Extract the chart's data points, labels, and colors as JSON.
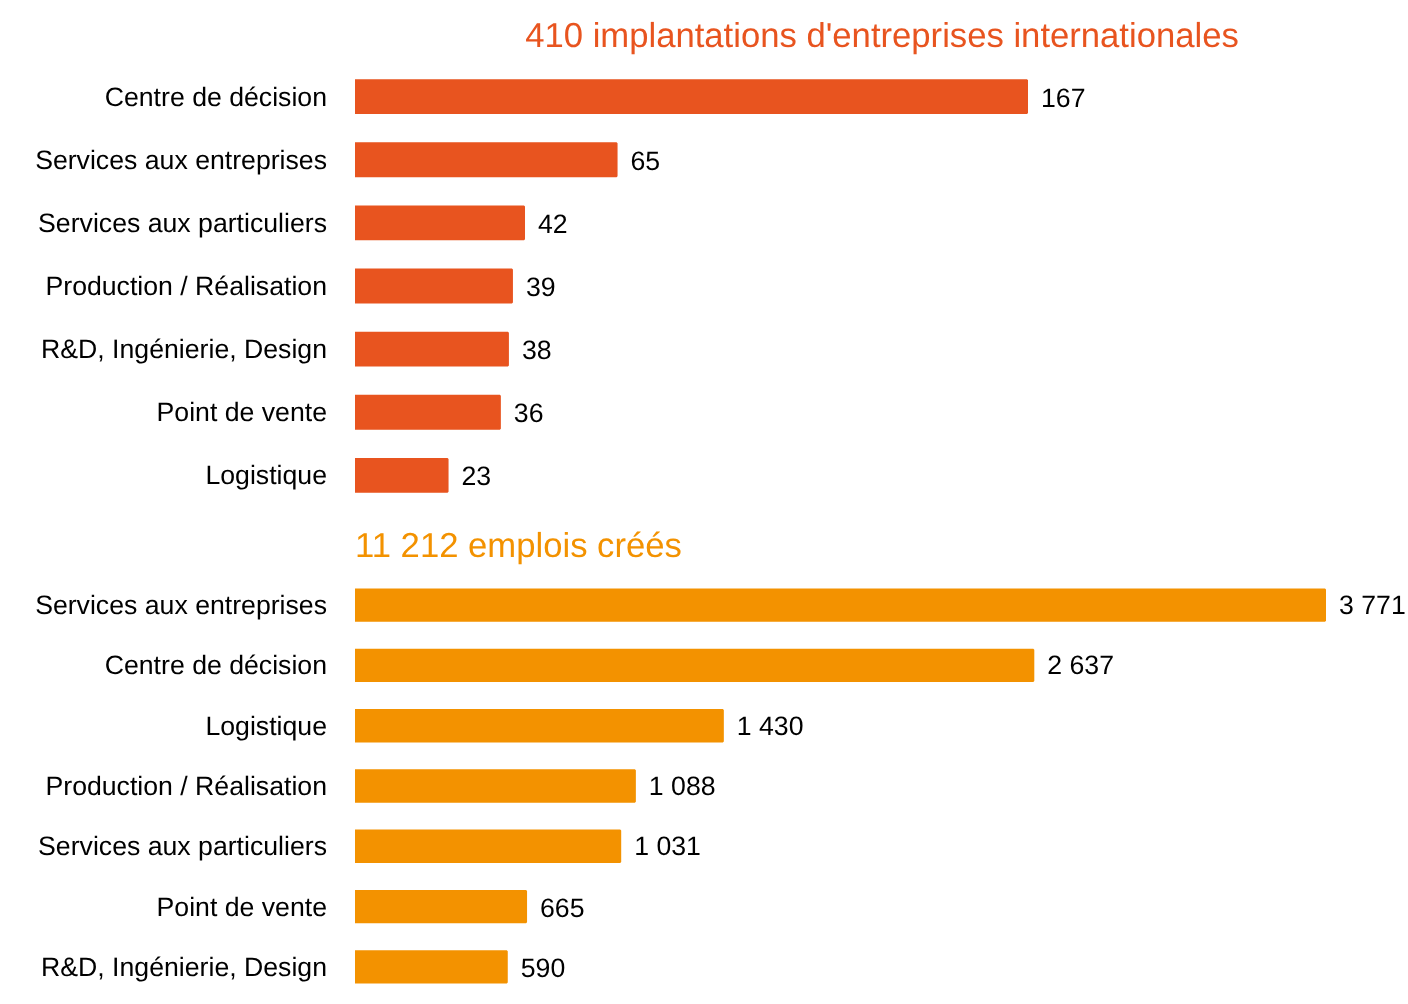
{
  "chart_data": [
    {
      "type": "bar",
      "orientation": "horizontal",
      "title": "410 implantations d'entreprises internationales",
      "categories": [
        "Centre de décision",
        "Services aux entreprises",
        "Services aux particuliers",
        "Production / Réalisation",
        "R&D, Ingénierie, Design",
        "Point de vente",
        "Logistique"
      ],
      "values": [
        167,
        65,
        42,
        39,
        38,
        36,
        23
      ],
      "color": "#e8541f",
      "data_labels": true
    },
    {
      "type": "bar",
      "orientation": "horizontal",
      "title": "11 212 emplois créés",
      "categories": [
        "Services aux entreprises",
        "Centre de décision",
        "Logistique",
        "Production / Réalisation",
        "Services aux particuliers",
        "Point de vente",
        "R&D, Ingénierie, Design"
      ],
      "values": [
        3771,
        2637,
        1430,
        1088,
        1031,
        665,
        590
      ],
      "value_labels": [
        "3 771",
        "2 637",
        "1 430",
        "1 088",
        "1 031",
        "665",
        "590"
      ],
      "color": "#f39200"
    }
  ]
}
